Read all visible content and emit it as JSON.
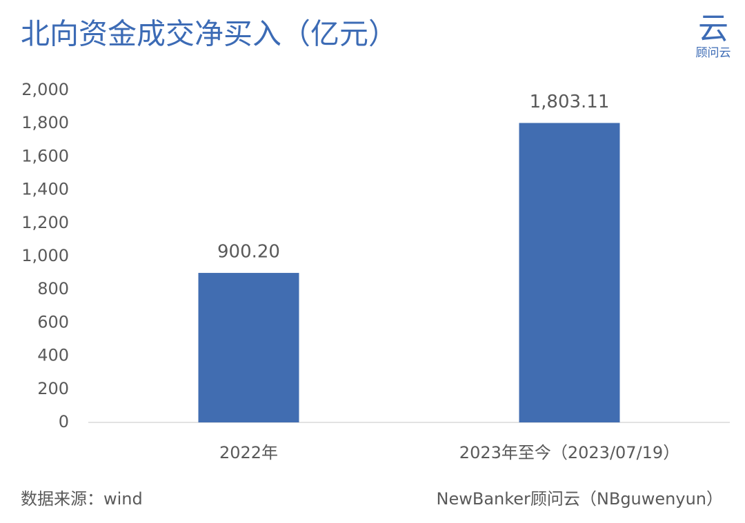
{
  "chart_data": {
    "type": "bar",
    "title": "北向资金成交净买入（亿元）",
    "logo_mark": "云",
    "logo_text": "顾问云",
    "categories": [
      "2022年",
      "2023年至今（2023/07/19）"
    ],
    "values": [
      900.2,
      1803.11
    ],
    "value_labels": [
      "900.20",
      "1,803.11"
    ],
    "color": "#416db1",
    "ylim": [
      0,
      2000
    ],
    "yticks": [
      0,
      200,
      400,
      600,
      800,
      {
        "value": 1000,
        "label": "1,000"
      },
      {
        "value": 1200,
        "label": "1,200"
      },
      {
        "value": 1400,
        "label": "1,400"
      },
      {
        "value": 1600,
        "label": "1,600"
      },
      {
        "value": 1800,
        "label": "1,800"
      },
      {
        "value": 2000,
        "label": "2,000"
      }
    ],
    "grid": false,
    "source": "数据来源：wind",
    "credit": "NewBanker顾问云（NBguwenyun）"
  }
}
